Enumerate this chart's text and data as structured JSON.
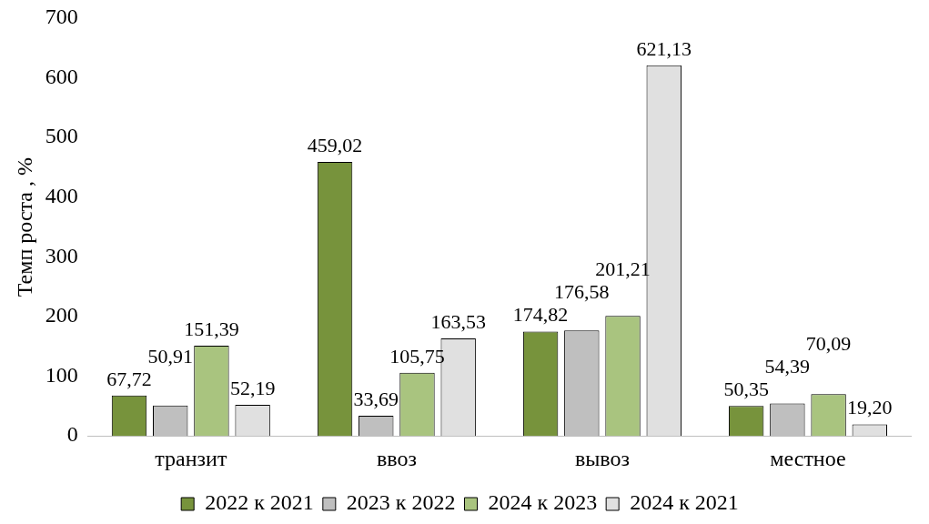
{
  "chart_data": {
    "type": "bar",
    "ylabel": "Темп роста , %",
    "categories": [
      "транзит",
      "ввоз",
      "вывоз",
      "местное"
    ],
    "series": [
      {
        "name": "2022 к 2021",
        "color": "#77933c",
        "values": [
          67.72,
          459.02,
          174.82,
          50.35
        ],
        "value_labels": [
          "67,72",
          "459,02",
          "174,82",
          "50,35"
        ]
      },
      {
        "name": "2023 к 2022",
        "color": "#bfbfbf",
        "values": [
          50.91,
          33.69,
          176.58,
          54.39
        ],
        "value_labels": [
          "50,91",
          "33,69",
          "176,58",
          "54,39"
        ]
      },
      {
        "name": "2024 к 2023",
        "color": "#a9c47f",
        "values": [
          151.39,
          105.75,
          201.21,
          70.09
        ],
        "value_labels": [
          "151,39",
          "105,75",
          "201,21",
          "70,09"
        ]
      },
      {
        "name": "2024 к 2021",
        "color": "#e0e0e0",
        "values": [
          52.19,
          163.53,
          621.13,
          19.2
        ],
        "value_labels": [
          "52,19",
          "163,53",
          "621,13",
          "19,20"
        ]
      }
    ],
    "ylim": [
      0,
      700
    ],
    "yticks": [
      0,
      100,
      200,
      300,
      400,
      500,
      600,
      700
    ],
    "grid": false,
    "legend": "bottom"
  }
}
